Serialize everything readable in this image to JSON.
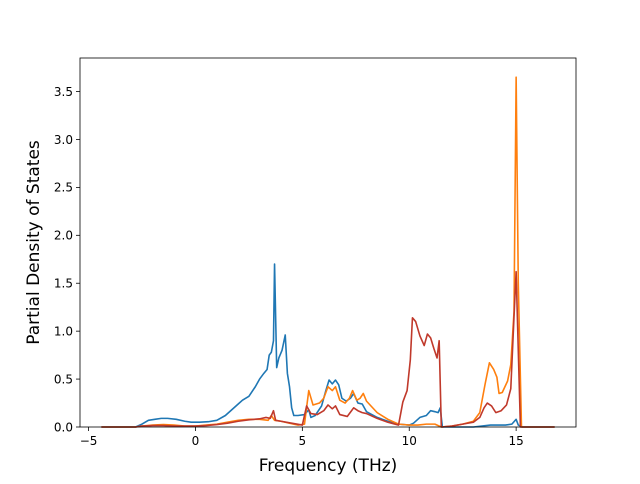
{
  "chart_data": {
    "type": "line",
    "title": "",
    "xlabel": "Frequency (THz)",
    "ylabel": "Partial Density of States",
    "xlim": [
      -5.4,
      17.8
    ],
    "ylim": [
      0,
      3.85
    ],
    "xticks": [
      -5,
      0,
      5,
      10,
      15
    ],
    "xtick_labels": [
      "−5",
      "0",
      "5",
      "10",
      "15"
    ],
    "yticks": [
      0.0,
      0.5,
      1.0,
      1.5,
      2.0,
      2.5,
      3.0,
      3.5
    ],
    "ytick_labels": [
      "0.0",
      "0.5",
      "1.0",
      "1.5",
      "2.0",
      "2.5",
      "3.0",
      "3.5"
    ],
    "grid": false,
    "series": [
      {
        "color": "#1f77b4",
        "points": [
          [
            -4.4,
            0
          ],
          [
            -2.8,
            0
          ],
          [
            -2.5,
            0.03
          ],
          [
            -2.2,
            0.07
          ],
          [
            -1.9,
            0.08
          ],
          [
            -1.6,
            0.09
          ],
          [
            -1.3,
            0.09
          ],
          [
            -0.9,
            0.08
          ],
          [
            -0.5,
            0.06
          ],
          [
            -0.2,
            0.05
          ],
          [
            0.2,
            0.05
          ],
          [
            0.6,
            0.055
          ],
          [
            1.0,
            0.07
          ],
          [
            1.4,
            0.12
          ],
          [
            1.7,
            0.18
          ],
          [
            2.0,
            0.24
          ],
          [
            2.2,
            0.28
          ],
          [
            2.5,
            0.32
          ],
          [
            2.8,
            0.42
          ],
          [
            3.0,
            0.5
          ],
          [
            3.2,
            0.56
          ],
          [
            3.35,
            0.6
          ],
          [
            3.45,
            0.75
          ],
          [
            3.55,
            0.78
          ],
          [
            3.65,
            0.9
          ],
          [
            3.7,
            1.7
          ],
          [
            3.8,
            0.62
          ],
          [
            3.9,
            0.72
          ],
          [
            4.05,
            0.8
          ],
          [
            4.2,
            0.96
          ],
          [
            4.3,
            0.56
          ],
          [
            4.4,
            0.42
          ],
          [
            4.5,
            0.2
          ],
          [
            4.6,
            0.12
          ],
          [
            4.8,
            0.12
          ],
          [
            5.1,
            0.13
          ],
          [
            5.3,
            0.18
          ],
          [
            5.4,
            0.1
          ],
          [
            5.6,
            0.12
          ],
          [
            5.9,
            0.22
          ],
          [
            6.1,
            0.38
          ],
          [
            6.25,
            0.49
          ],
          [
            6.4,
            0.45
          ],
          [
            6.55,
            0.49
          ],
          [
            6.7,
            0.44
          ],
          [
            6.85,
            0.3
          ],
          [
            7.05,
            0.27
          ],
          [
            7.25,
            0.3
          ],
          [
            7.4,
            0.35
          ],
          [
            7.6,
            0.25
          ],
          [
            7.8,
            0.24
          ],
          [
            8.0,
            0.16
          ],
          [
            8.5,
            0.1
          ],
          [
            9.0,
            0.06
          ],
          [
            9.5,
            0.03
          ],
          [
            10.0,
            0.02
          ],
          [
            10.2,
            0.04
          ],
          [
            10.5,
            0.1
          ],
          [
            10.8,
            0.12
          ],
          [
            11.0,
            0.17
          ],
          [
            11.2,
            0.16
          ],
          [
            11.35,
            0.15
          ],
          [
            11.45,
            0.2
          ],
          [
            11.55,
            0.0
          ],
          [
            12.5,
            0.0
          ],
          [
            13.0,
            0.0
          ],
          [
            13.8,
            0.02
          ],
          [
            14.5,
            0.02
          ],
          [
            14.8,
            0.03
          ],
          [
            15.0,
            0.08
          ],
          [
            15.1,
            0.02
          ],
          [
            15.3,
            0.0
          ],
          [
            16.8,
            0.0
          ]
        ]
      },
      {
        "color": "#ff7f0e",
        "points": [
          [
            -4.4,
            0
          ],
          [
            -2.8,
            0
          ],
          [
            -2.5,
            0.01
          ],
          [
            -2.0,
            0.02
          ],
          [
            -1.5,
            0.025
          ],
          [
            -1.0,
            0.02
          ],
          [
            -0.5,
            0.01
          ],
          [
            0.0,
            0.01
          ],
          [
            0.5,
            0.02
          ],
          [
            1.0,
            0.03
          ],
          [
            1.5,
            0.05
          ],
          [
            2.0,
            0.07
          ],
          [
            2.5,
            0.08
          ],
          [
            3.0,
            0.08
          ],
          [
            3.4,
            0.07
          ],
          [
            3.55,
            0.12
          ],
          [
            3.7,
            0.07
          ],
          [
            4.0,
            0.06
          ],
          [
            4.4,
            0.04
          ],
          [
            4.8,
            0.02
          ],
          [
            5.1,
            0.03
          ],
          [
            5.3,
            0.38
          ],
          [
            5.5,
            0.23
          ],
          [
            5.8,
            0.25
          ],
          [
            6.0,
            0.3
          ],
          [
            6.2,
            0.42
          ],
          [
            6.4,
            0.38
          ],
          [
            6.55,
            0.42
          ],
          [
            6.75,
            0.28
          ],
          [
            7.0,
            0.25
          ],
          [
            7.2,
            0.3
          ],
          [
            7.35,
            0.38
          ],
          [
            7.55,
            0.28
          ],
          [
            7.7,
            0.3
          ],
          [
            7.85,
            0.35
          ],
          [
            8.0,
            0.27
          ],
          [
            8.5,
            0.15
          ],
          [
            9.0,
            0.08
          ],
          [
            9.5,
            0.03
          ],
          [
            10.0,
            0.02
          ],
          [
            10.4,
            0.02
          ],
          [
            10.8,
            0.03
          ],
          [
            11.2,
            0.03
          ],
          [
            11.5,
            0.0
          ],
          [
            12.0,
            0.01
          ],
          [
            12.5,
            0.03
          ],
          [
            13.0,
            0.06
          ],
          [
            13.3,
            0.15
          ],
          [
            13.55,
            0.45
          ],
          [
            13.75,
            0.67
          ],
          [
            13.95,
            0.6
          ],
          [
            14.1,
            0.52
          ],
          [
            14.2,
            0.35
          ],
          [
            14.35,
            0.36
          ],
          [
            14.6,
            0.48
          ],
          [
            14.75,
            0.65
          ],
          [
            14.9,
            1.2
          ],
          [
            15.0,
            3.65
          ],
          [
            15.1,
            1.5
          ],
          [
            15.25,
            0.0
          ],
          [
            16.8,
            0.0
          ]
        ]
      },
      {
        "color": "#c0392b",
        "points": [
          [
            -4.4,
            0
          ],
          [
            -2.8,
            0
          ],
          [
            -2.5,
            0.01
          ],
          [
            -2.0,
            0.015
          ],
          [
            -1.5,
            0.015
          ],
          [
            -1.0,
            0.01
          ],
          [
            0.0,
            0.01
          ],
          [
            0.5,
            0.015
          ],
          [
            1.0,
            0.025
          ],
          [
            1.5,
            0.04
          ],
          [
            2.0,
            0.06
          ],
          [
            2.5,
            0.075
          ],
          [
            3.0,
            0.085
          ],
          [
            3.3,
            0.1
          ],
          [
            3.5,
            0.09
          ],
          [
            3.65,
            0.17
          ],
          [
            3.75,
            0.07
          ],
          [
            4.0,
            0.06
          ],
          [
            4.5,
            0.04
          ],
          [
            5.0,
            0.02
          ],
          [
            5.2,
            0.22
          ],
          [
            5.4,
            0.14
          ],
          [
            5.7,
            0.13
          ],
          [
            6.0,
            0.17
          ],
          [
            6.2,
            0.23
          ],
          [
            6.4,
            0.19
          ],
          [
            6.55,
            0.22
          ],
          [
            6.75,
            0.13
          ],
          [
            7.1,
            0.11
          ],
          [
            7.3,
            0.17
          ],
          [
            7.4,
            0.2
          ],
          [
            7.6,
            0.17
          ],
          [
            7.8,
            0.15
          ],
          [
            8.0,
            0.14
          ],
          [
            8.5,
            0.09
          ],
          [
            9.0,
            0.05
          ],
          [
            9.5,
            0.02
          ],
          [
            9.7,
            0.26
          ],
          [
            9.9,
            0.38
          ],
          [
            10.05,
            0.7
          ],
          [
            10.15,
            1.14
          ],
          [
            10.3,
            1.1
          ],
          [
            10.5,
            0.95
          ],
          [
            10.7,
            0.85
          ],
          [
            10.85,
            0.97
          ],
          [
            11.0,
            0.93
          ],
          [
            11.15,
            0.82
          ],
          [
            11.3,
            0.72
          ],
          [
            11.4,
            0.9
          ],
          [
            11.5,
            0.0
          ],
          [
            12.0,
            0.01
          ],
          [
            12.5,
            0.03
          ],
          [
            13.0,
            0.05
          ],
          [
            13.3,
            0.1
          ],
          [
            13.5,
            0.2
          ],
          [
            13.65,
            0.25
          ],
          [
            13.85,
            0.22
          ],
          [
            14.05,
            0.15
          ],
          [
            14.3,
            0.17
          ],
          [
            14.55,
            0.23
          ],
          [
            14.75,
            0.4
          ],
          [
            14.9,
            1.15
          ],
          [
            15.0,
            1.62
          ],
          [
            15.1,
            0.8
          ],
          [
            15.2,
            0.0
          ],
          [
            16.8,
            0.0
          ]
        ]
      }
    ]
  }
}
